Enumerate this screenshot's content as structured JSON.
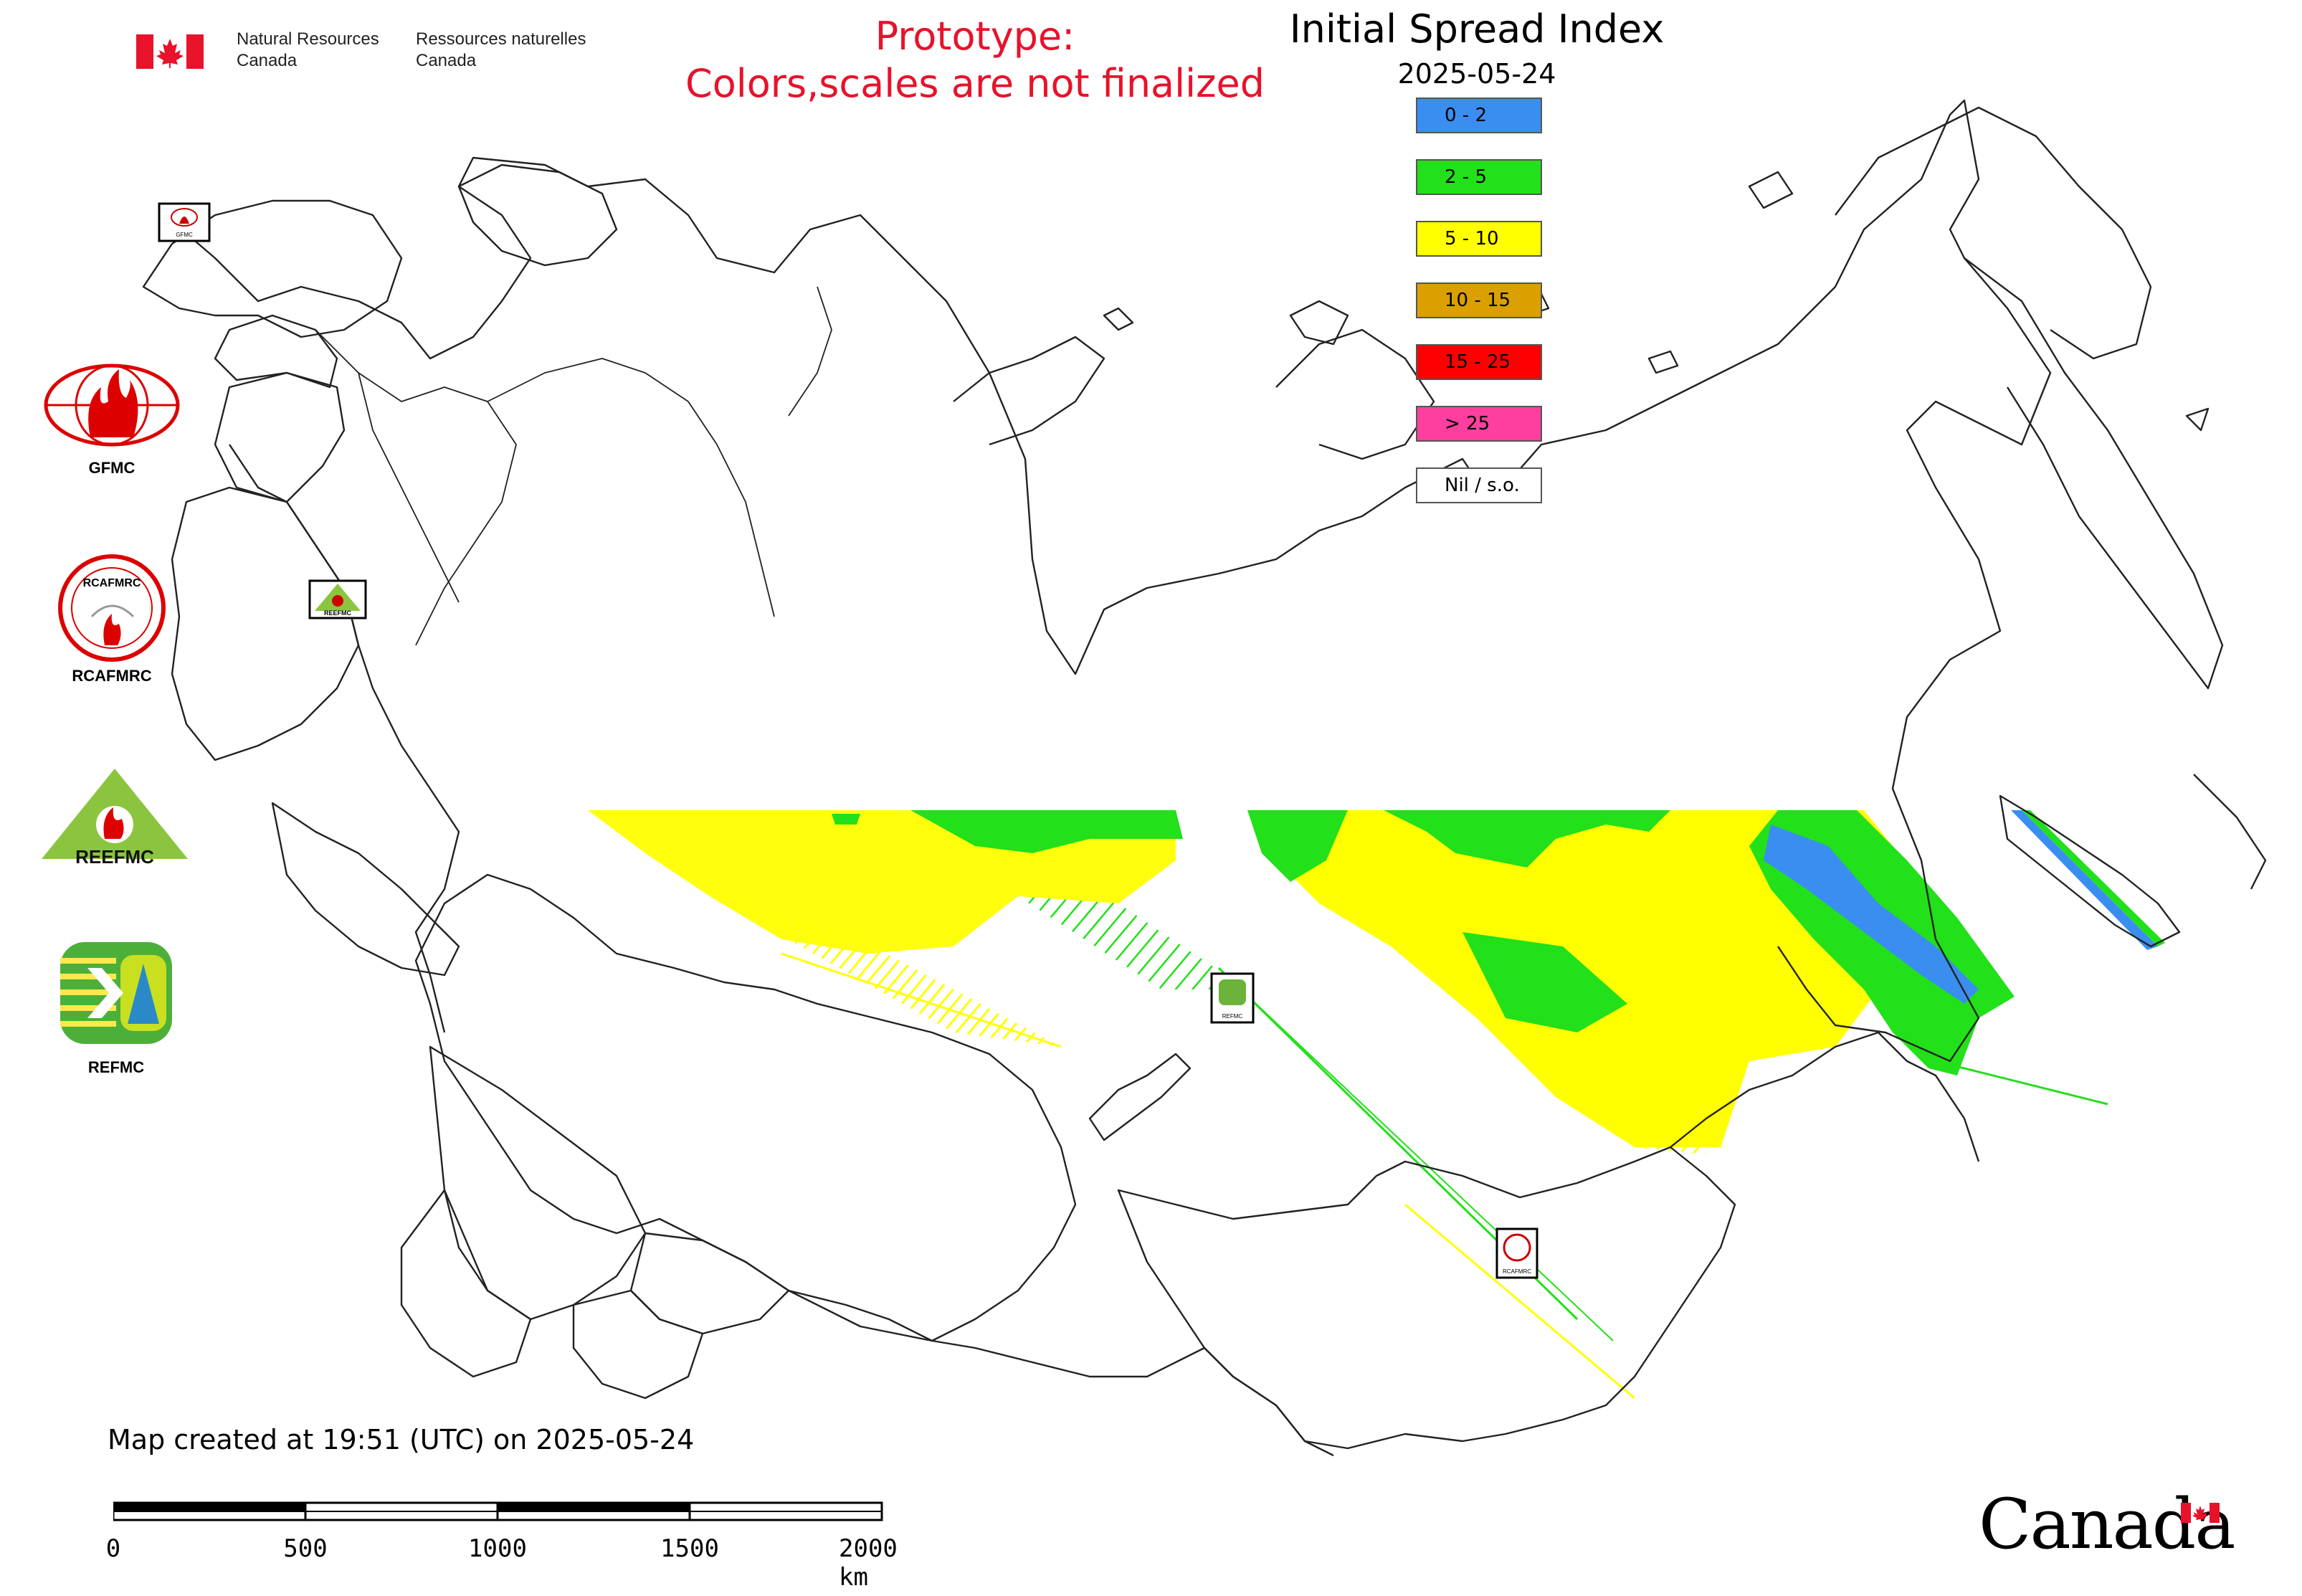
{
  "header": {
    "department_en_line1": "Natural Resources",
    "department_en_line2": "Canada",
    "department_fr_line1": "Ressources naturelles",
    "department_fr_line2": "Canada"
  },
  "notice": {
    "line1": "Prototype:",
    "line2": "Colors,scales are not finalized",
    "color": "#e8122a"
  },
  "map": {
    "title": "Initial Spread Index",
    "date": "2025-05-24",
    "legend": [
      {
        "label": "0 - 2",
        "color": "#3a8ef0"
      },
      {
        "label": "2 - 5",
        "color": "#22e01a"
      },
      {
        "label": "5 - 10",
        "color": "#ffff00"
      },
      {
        "label": "10 - 15",
        "color": "#daa000"
      },
      {
        "label": "15 - 25",
        "color": "#ff0000"
      },
      {
        "label": "> 25",
        "color": "#ff3fa0"
      },
      {
        "label": "Nil / s.o.",
        "color": "#ffffff"
      }
    ]
  },
  "logos": [
    {
      "label": "GFMC"
    },
    {
      "label": "RCAFMRC"
    },
    {
      "label": "REEFMC"
    },
    {
      "label": "REFMC"
    }
  ],
  "map_badges": {
    "gfmc": "GFMC",
    "reefmc": "REEFMC",
    "refmc": "REFMC",
    "rcafmrc": "RCAFMRC"
  },
  "footer": {
    "created": "Map created at 19:51 (UTC) on 2025-05-24",
    "scale_ticks": [
      "0",
      "500",
      "1000",
      "1500",
      "2000 km"
    ],
    "wordmark": "Canada"
  }
}
